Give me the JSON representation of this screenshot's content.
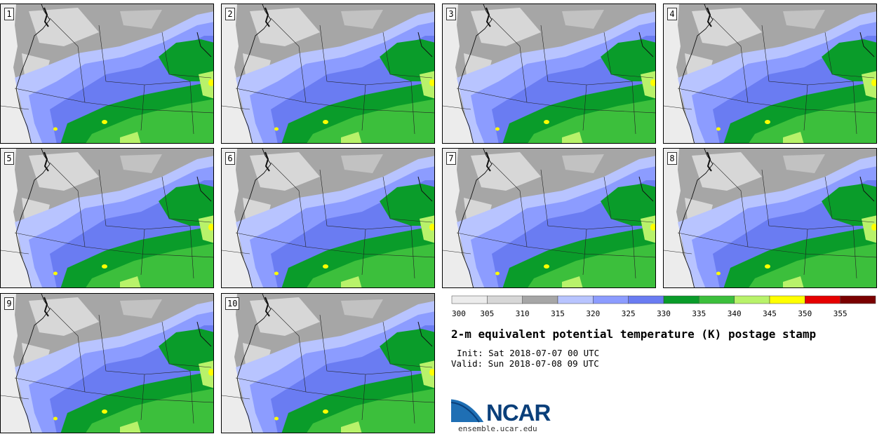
{
  "panels": [
    {
      "label": "1"
    },
    {
      "label": "2"
    },
    {
      "label": "3"
    },
    {
      "label": "4"
    },
    {
      "label": "5"
    },
    {
      "label": "6"
    },
    {
      "label": "7"
    },
    {
      "label": "8"
    },
    {
      "label": "9"
    },
    {
      "label": "10"
    }
  ],
  "colorbar": {
    "ticks": [
      "300",
      "305",
      "310",
      "315",
      "320",
      "325",
      "330",
      "335",
      "340",
      "345",
      "350",
      "355"
    ],
    "colors": [
      "#ececec",
      "#d7d7d7",
      "#a6a6a6",
      "#b8c4ff",
      "#8c9cff",
      "#6a7cf2",
      "#0a9c2a",
      "#3cbf3c",
      "#b8f26a",
      "#ffff00",
      "#e60000",
      "#7a0000"
    ]
  },
  "title": "2-m equivalent potential temperature (K) postage stamp",
  "init": "Init: Sat 2018-07-07 00 UTC",
  "valid": "Valid: Sun 2018-07-08 09 UTC",
  "logo": {
    "word": "NCAR",
    "url": "ensemble.ucar.edu"
  }
}
